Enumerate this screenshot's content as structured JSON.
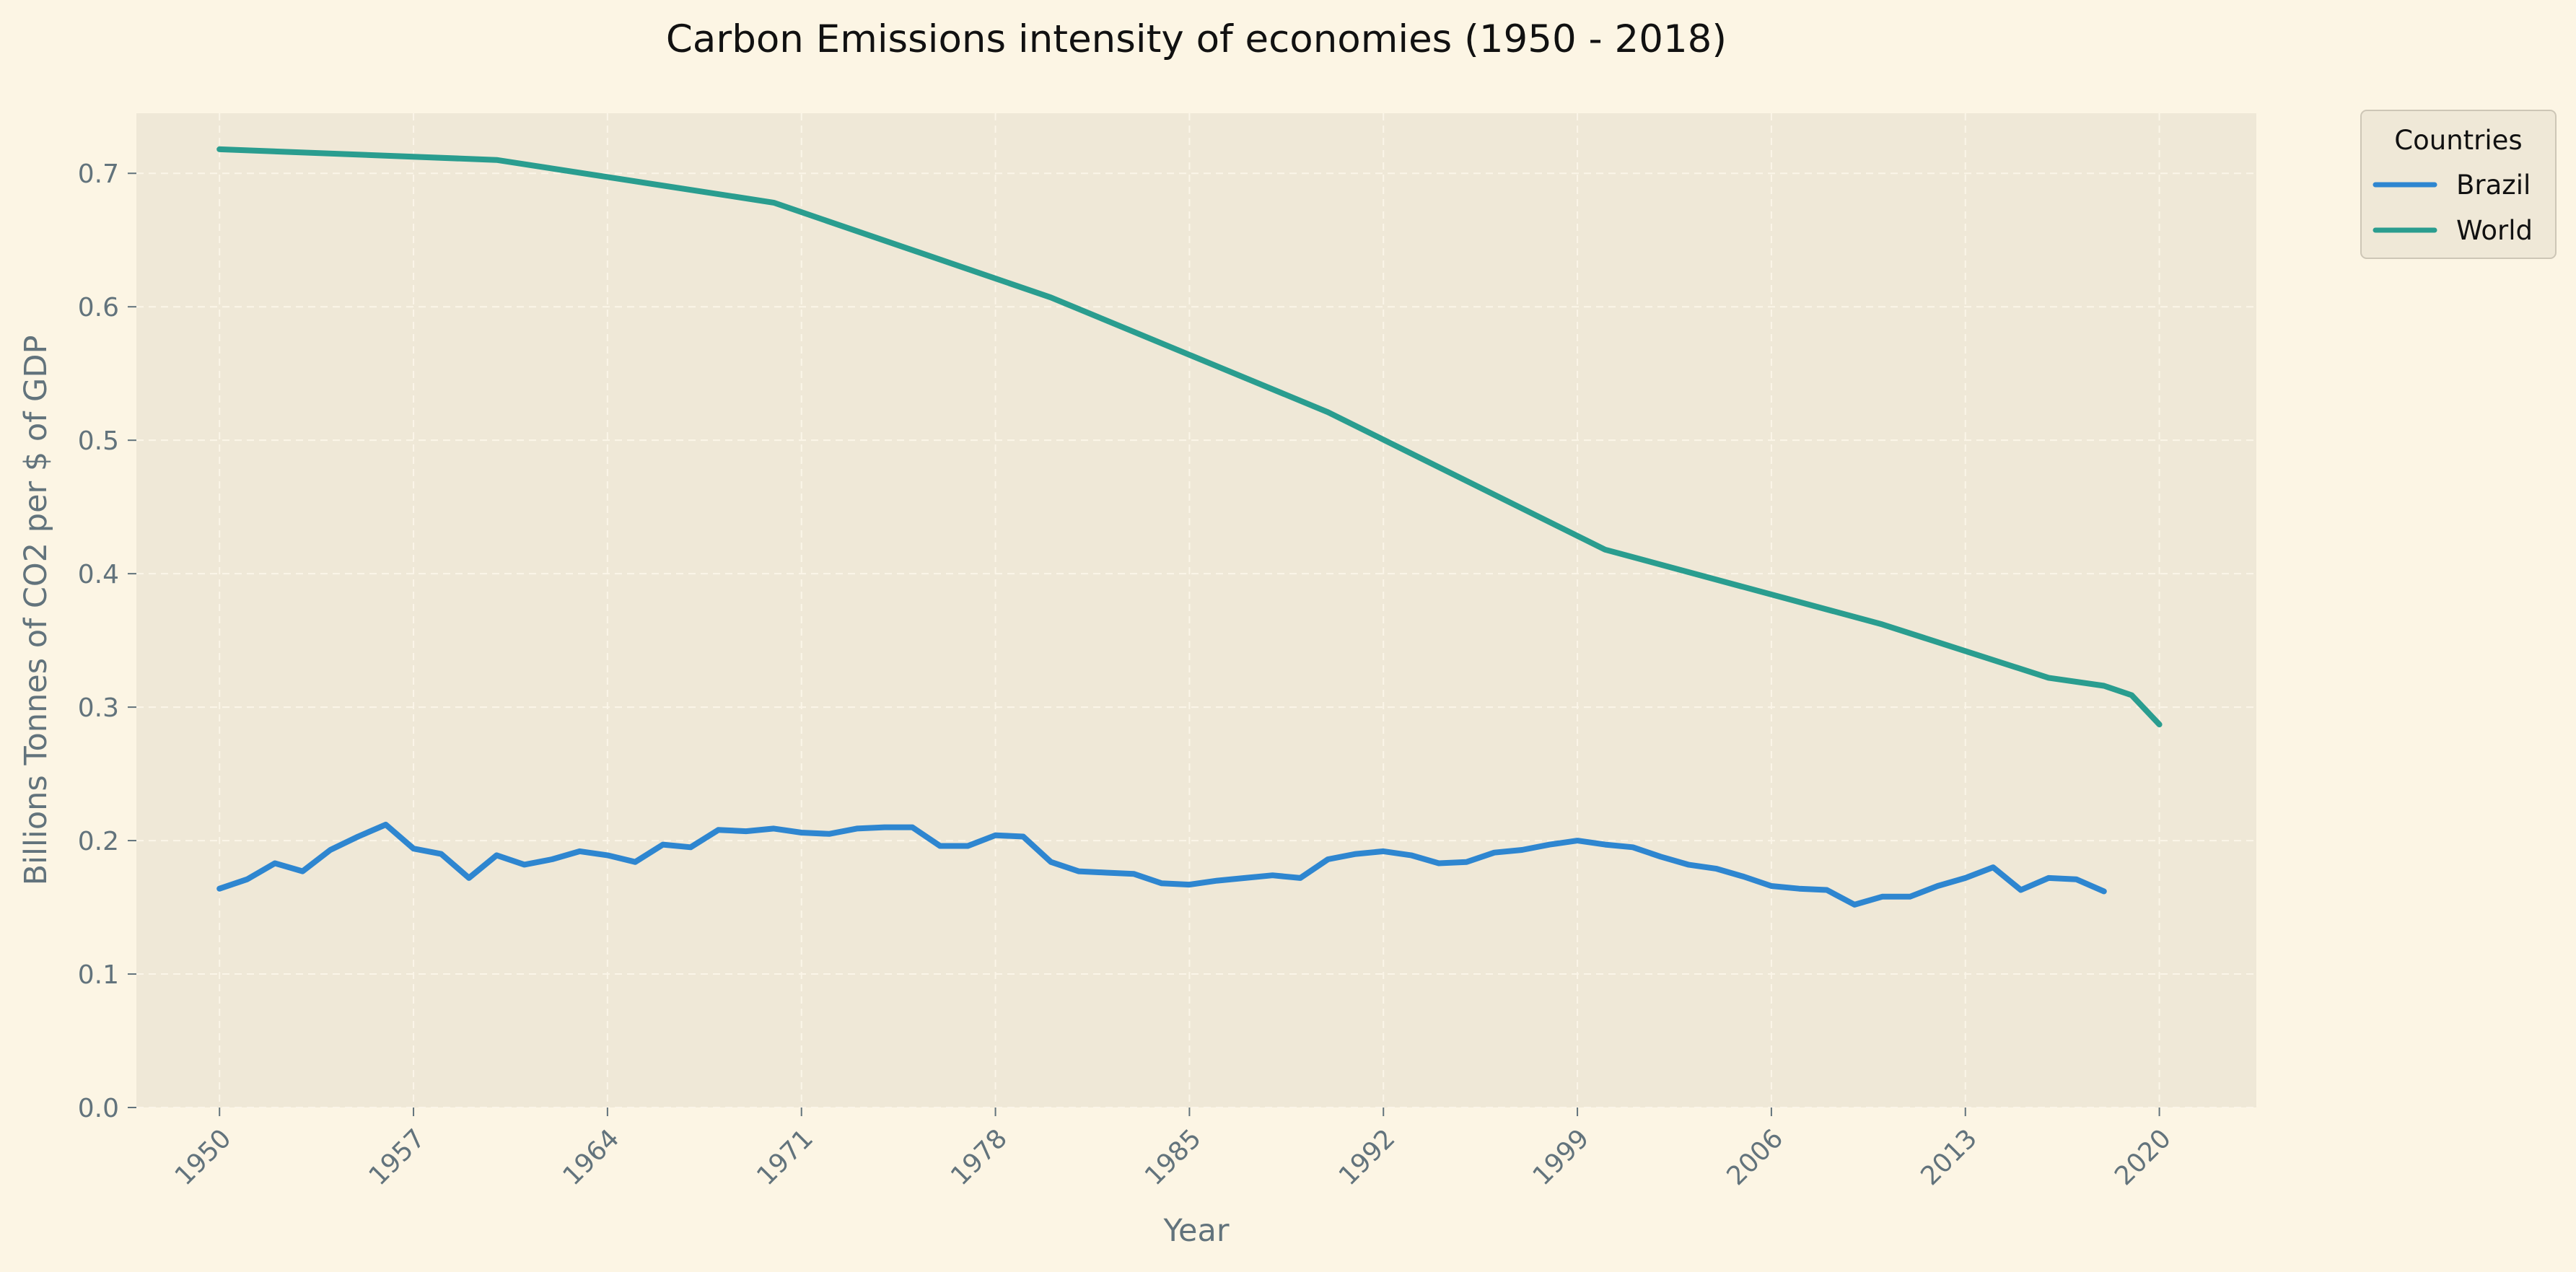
{
  "chart_data": {
    "type": "line",
    "title": "Carbon Emissions intensity of economies (1950 - 2018)",
    "xlabel": "Year",
    "ylabel": "Billions Tonnes of CO2 per $ of GDP",
    "xlim": [
      1947,
      2023.5
    ],
    "ylim": [
      0,
      0.745
    ],
    "xticks": [
      "1950",
      "1957",
      "1964",
      "1971",
      "1978",
      "1985",
      "1992",
      "1999",
      "2006",
      "2013",
      "2020"
    ],
    "yticks": [
      "0.0",
      "0.1",
      "0.2",
      "0.3",
      "0.4",
      "0.5",
      "0.6",
      "0.7"
    ],
    "grid": true,
    "legend": {
      "title": "Countries",
      "position": "outside-top-right"
    },
    "series": [
      {
        "name": "Brazil",
        "color": "#2e86d0",
        "x": [
          1950,
          1951,
          1952,
          1953,
          1954,
          1955,
          1956,
          1957,
          1958,
          1959,
          1960,
          1961,
          1962,
          1963,
          1964,
          1965,
          1966,
          1967,
          1968,
          1969,
          1970,
          1971,
          1972,
          1973,
          1974,
          1975,
          1976,
          1977,
          1978,
          1979,
          1980,
          1981,
          1982,
          1983,
          1984,
          1985,
          1986,
          1987,
          1988,
          1989,
          1990,
          1991,
          1992,
          1993,
          1994,
          1995,
          1996,
          1997,
          1998,
          1999,
          2000,
          2001,
          2002,
          2003,
          2004,
          2005,
          2006,
          2007,
          2008,
          2009,
          2010,
          2011,
          2012,
          2013,
          2014,
          2015,
          2016,
          2017,
          2018
        ],
        "values": [
          0.164,
          0.171,
          0.183,
          0.177,
          0.193,
          0.203,
          0.212,
          0.194,
          0.19,
          0.172,
          0.189,
          0.182,
          0.186,
          0.192,
          0.189,
          0.184,
          0.197,
          0.195,
          0.208,
          0.207,
          0.209,
          0.206,
          0.205,
          0.209,
          0.21,
          0.21,
          0.196,
          0.196,
          0.204,
          0.203,
          0.184,
          0.177,
          0.176,
          0.175,
          0.168,
          0.167,
          0.17,
          0.172,
          0.174,
          0.172,
          0.186,
          0.19,
          0.192,
          0.189,
          0.183,
          0.184,
          0.191,
          0.193,
          0.197,
          0.2,
          0.197,
          0.195,
          0.188,
          0.182,
          0.179,
          0.173,
          0.166,
          0.164,
          0.163,
          0.152,
          0.158,
          0.158,
          0.166,
          0.172,
          0.18,
          0.163,
          0.172,
          0.171,
          0.162
        ]
      },
      {
        "name": "World",
        "color": "#2a9d8f",
        "x": [
          1950,
          1960,
          1970,
          1980,
          1990,
          2000,
          2010,
          2016,
          2018,
          2019,
          2020
        ],
        "values": [
          0.718,
          0.71,
          0.678,
          0.607,
          0.521,
          0.418,
          0.362,
          0.322,
          0.316,
          0.309,
          0.287
        ]
      }
    ]
  }
}
